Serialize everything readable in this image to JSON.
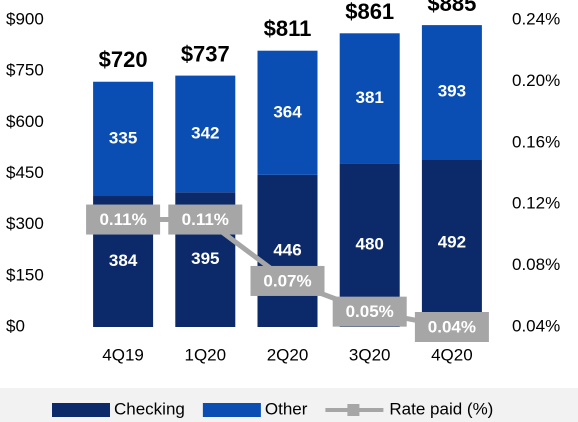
{
  "chart_data": {
    "type": "bar",
    "categories": [
      "4Q19",
      "1Q20",
      "2Q20",
      "3Q20",
      "4Q20"
    ],
    "series": [
      {
        "name": "Checking",
        "color": "#0c2a6a",
        "values": [
          384,
          395,
          446,
          480,
          492
        ]
      },
      {
        "name": "Other",
        "color": "#0a4db3",
        "values": [
          335,
          342,
          364,
          381,
          393
        ]
      },
      {
        "name": "Rate paid (%)",
        "color": "#a6a6a6",
        "axis": "y2",
        "type": "line",
        "values": [
          0.11,
          0.11,
          0.07,
          0.05,
          0.04
        ],
        "value_labels": [
          "0.11%",
          "0.11%",
          "0.07%",
          "0.05%",
          "0.04%"
        ]
      }
    ],
    "totals": {
      "values": [
        720,
        737,
        811,
        861,
        885
      ],
      "value_labels": [
        "$720",
        "$737",
        "$811",
        "$861",
        "$885"
      ]
    },
    "stacked": true,
    "ylim": [
      0,
      900
    ],
    "yticks": [
      {
        "value": 0,
        "label": "$0"
      },
      {
        "value": 150,
        "label": "$150"
      },
      {
        "value": 300,
        "label": "$300"
      },
      {
        "value": 450,
        "label": "$450"
      },
      {
        "value": 600,
        "label": "$600"
      },
      {
        "value": 750,
        "label": "$750"
      },
      {
        "value": 900,
        "label": "$900"
      }
    ],
    "y2lim": [
      0.04,
      0.24
    ],
    "y2ticks": [
      {
        "value": 0.04,
        "label": "0.04%"
      },
      {
        "value": 0.08,
        "label": "0.08%"
      },
      {
        "value": 0.12,
        "label": "0.12%"
      },
      {
        "value": 0.16,
        "label": "0.16%"
      },
      {
        "value": 0.2,
        "label": "0.20%"
      },
      {
        "value": 0.24,
        "label": "0.24%"
      }
    ],
    "legend": "bottom"
  }
}
